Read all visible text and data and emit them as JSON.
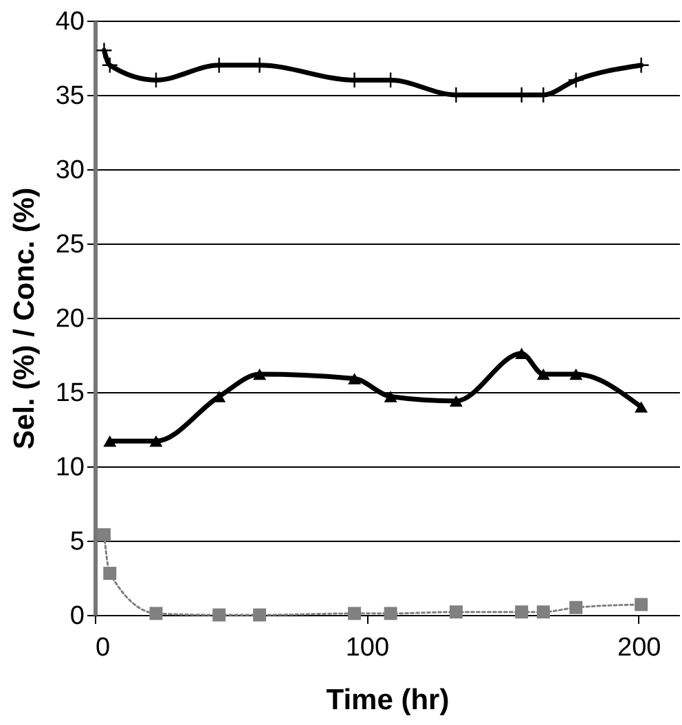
{
  "chart_data": {
    "type": "line",
    "xlabel": "Time (hr)",
    "ylabel": "Sel. (%) / Conc. (%)",
    "xlim": [
      0,
      215
    ],
    "ylim": [
      0,
      40
    ],
    "xticks": [
      0,
      100,
      200
    ],
    "yticks": [
      0,
      5,
      10,
      15,
      20,
      25,
      30,
      35,
      40
    ],
    "grid": "y",
    "x": [
      3.4,
      5.5,
      22.5,
      45.7,
      60.6,
      95.5,
      108.8,
      132.9,
      157,
      165,
      177,
      201
    ],
    "series": [
      {
        "color": "#000000",
        "marker": "cross",
        "line_style": "solid",
        "values": [
          38,
          37,
          36,
          37,
          37,
          36,
          36,
          35,
          35,
          35,
          36,
          37
        ]
      },
      {
        "color": "#000000",
        "marker": "triangle",
        "line_style": "solid",
        "values": [
          null,
          11.7,
          11.7,
          14.7,
          16.2,
          15.9,
          14.7,
          14.4,
          17.6,
          16.2,
          16.2,
          14.0
        ]
      },
      {
        "color": "#808080",
        "marker": "square",
        "line_style": "dotted",
        "values": [
          5.4,
          2.8,
          0.1,
          0,
          0,
          0.1,
          0.1,
          0.2,
          0.2,
          0.2,
          0.5,
          0.7
        ]
      }
    ]
  }
}
